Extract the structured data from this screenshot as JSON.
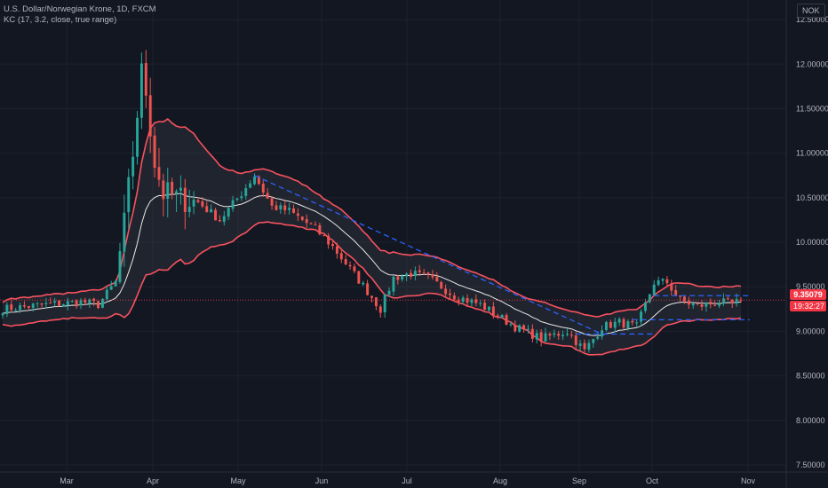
{
  "header": {
    "symbol_line": "U.S. Dollar/Norwegian Krone, 1D, FXCM",
    "indicator_line": "KC (17, 3.2, close, true range)"
  },
  "currency_badge": "NOK",
  "last_price_label": "9.35079",
  "countdown_label": "19:32:27",
  "chart_data": {
    "type": "candlestick",
    "title": "U.S. Dollar/Norwegian Krone, 1D, FXCM",
    "indicator": "KC (17, 3.2, close, true range)",
    "y_ticks": [
      "12.50000",
      "12.00000",
      "11.50000",
      "11.00000",
      "10.50000",
      "10.00000",
      "9.50000",
      "9.00000",
      "8.50000",
      "8.00000",
      "7.50000"
    ],
    "y_tick_values": [
      12.5,
      12.0,
      11.5,
      11.0,
      10.5,
      10.0,
      9.5,
      9.0,
      8.5,
      8.0,
      7.5
    ],
    "ylim": [
      7.42,
      12.72
    ],
    "x_labels": [
      "Mar",
      "Apr",
      "May",
      "Jun",
      "Jul",
      "Aug",
      "Sep",
      "Oct",
      "Nov"
    ],
    "last_price": 9.35079,
    "close_anchors": [
      [
        0,
        9.25
      ],
      [
        10,
        9.3
      ],
      [
        18,
        9.33
      ],
      [
        22,
        9.3
      ],
      [
        26,
        9.55
      ],
      [
        28,
        10.2
      ],
      [
        30,
        11.0
      ],
      [
        32,
        11.9
      ],
      [
        33,
        11.7
      ],
      [
        35,
        10.9
      ],
      [
        37,
        10.55
      ],
      [
        40,
        10.5
      ],
      [
        45,
        10.45
      ],
      [
        50,
        10.25
      ],
      [
        55,
        10.55
      ],
      [
        58,
        10.75
      ],
      [
        62,
        10.4
      ],
      [
        66,
        10.35
      ],
      [
        72,
        10.15
      ],
      [
        76,
        9.95
      ],
      [
        80,
        9.7
      ],
      [
        84,
        9.45
      ],
      [
        87,
        9.25
      ],
      [
        90,
        9.6
      ],
      [
        94,
        9.65
      ],
      [
        98,
        9.6
      ],
      [
        104,
        9.4
      ],
      [
        110,
        9.3
      ],
      [
        118,
        9.05
      ],
      [
        124,
        8.92
      ],
      [
        130,
        9.0
      ],
      [
        134,
        8.78
      ],
      [
        138,
        9.05
      ],
      [
        142,
        9.1
      ],
      [
        146,
        9.05
      ],
      [
        150,
        9.55
      ],
      [
        153,
        9.55
      ],
      [
        156,
        9.35
      ],
      [
        160,
        9.28
      ],
      [
        165,
        9.33
      ],
      [
        168,
        9.3
      ],
      [
        170,
        9.35
      ]
    ],
    "bands_note": "Keltner upper/middle/lower bands computed from closes"
  }
}
